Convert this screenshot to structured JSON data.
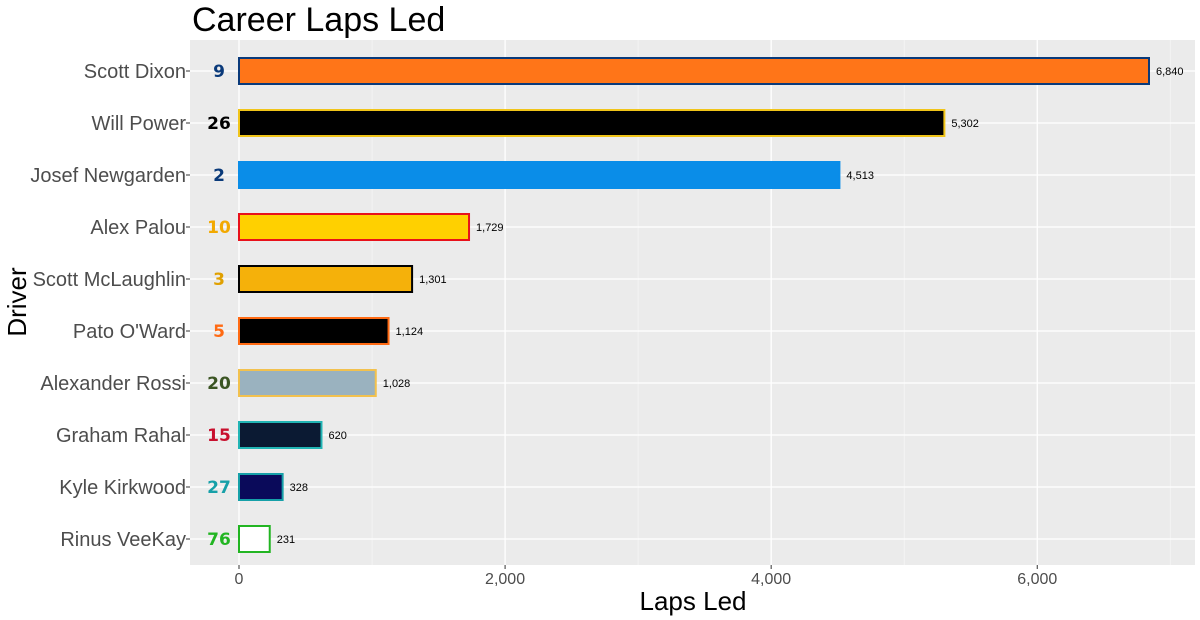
{
  "chart_data": {
    "type": "bar",
    "orientation": "horizontal",
    "title": "Career Laps Led",
    "xlabel": "Laps Led",
    "ylabel": "Driver",
    "xlim": [
      0,
      7200
    ],
    "x_ticks": [
      0,
      2000,
      4000,
      6000
    ],
    "x_tick_labels": [
      "0",
      "2,000",
      "4,000",
      "6,000"
    ],
    "grid": true,
    "background": "#ebebeb",
    "bars": [
      {
        "driver": "Scott Dixon",
        "value": 6840,
        "value_label": "6,840",
        "car_number": "9",
        "fill": "#ff7518",
        "outline": "#0a3a7a",
        "number_color": "#0a3a7a"
      },
      {
        "driver": "Will Power",
        "value": 5302,
        "value_label": "5,302",
        "car_number": "26",
        "fill": "#000000",
        "outline": "#f0c419",
        "number_color": "#000000"
      },
      {
        "driver": "Josef Newgarden",
        "value": 4513,
        "value_label": "4,513",
        "car_number": "2",
        "fill": "#0a8de8",
        "outline": "#0a8de8",
        "number_color": "#0a3a7a"
      },
      {
        "driver": "Alex Palou",
        "value": 1729,
        "value_label": "1,729",
        "car_number": "10",
        "fill": "#ffd000",
        "outline": "#e8111b",
        "number_color": "#f2a900"
      },
      {
        "driver": "Scott McLaughlin",
        "value": 1301,
        "value_label": "1,301",
        "car_number": "3",
        "fill": "#f5b10a",
        "outline": "#000000",
        "number_color": "#e0a000"
      },
      {
        "driver": "Pato O'Ward",
        "value": 1124,
        "value_label": "1,124",
        "car_number": "5",
        "fill": "#000000",
        "outline": "#ff6a13",
        "number_color": "#ff6a13"
      },
      {
        "driver": "Alexander Rossi",
        "value": 1028,
        "value_label": "1,028",
        "car_number": "20",
        "fill": "#9ab2bf",
        "outline": "#f2c14e",
        "number_color": "#3b5523"
      },
      {
        "driver": "Graham Rahal",
        "value": 620,
        "value_label": "620",
        "car_number": "15",
        "fill": "#0b1a33",
        "outline": "#22b5b5",
        "number_color": "#c8102e"
      },
      {
        "driver": "Kyle Kirkwood",
        "value": 328,
        "value_label": "328",
        "car_number": "27",
        "fill": "#0a0a5a",
        "outline": "#16a0a8",
        "number_color": "#16a0a8"
      },
      {
        "driver": "Rinus VeeKay",
        "value": 231,
        "value_label": "231",
        "car_number": "76",
        "fill": "#ffffff",
        "outline": "#22b522",
        "number_color": "#22b522"
      }
    ]
  }
}
